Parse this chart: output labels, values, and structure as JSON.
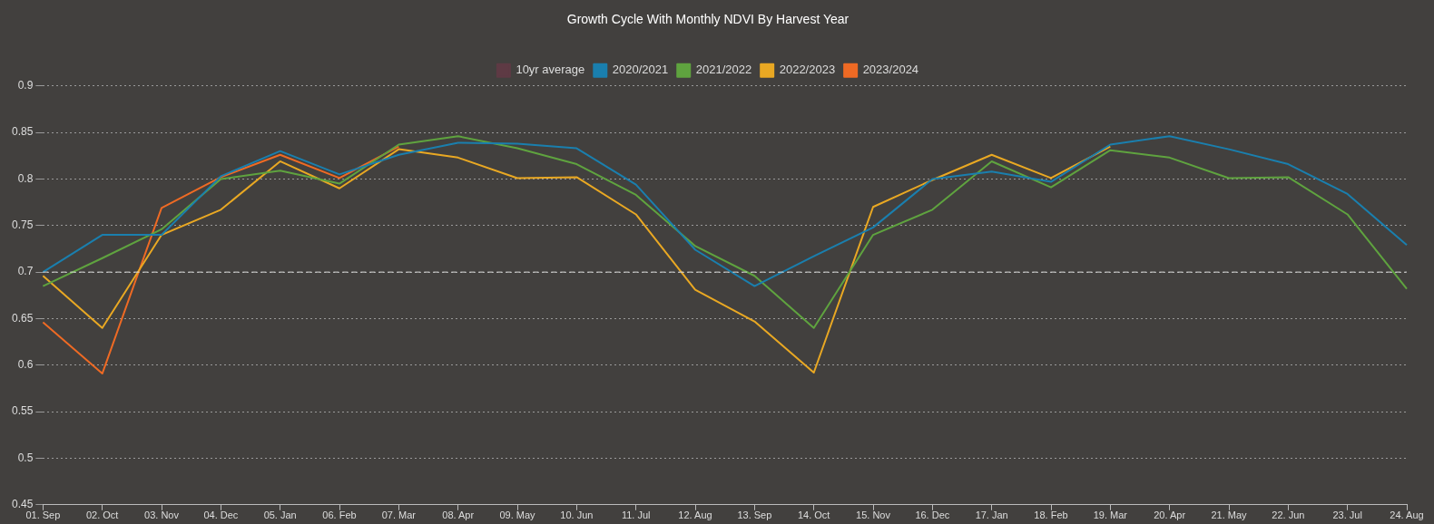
{
  "chart_data": {
    "type": "line",
    "title": "Growth Cycle With Monthly NDVI By Harvest Year",
    "categories": [
      "01. Sep",
      "02. Oct",
      "03. Nov",
      "04. Dec",
      "05. Jan",
      "06. Feb",
      "07. Mar",
      "08. Apr",
      "09. May",
      "10. Jun",
      "11. Jul",
      "12. Aug",
      "13. Sep",
      "14. Oct",
      "15. Nov",
      "16. Dec",
      "17. Jan",
      "18. Feb",
      "19. Mar",
      "20. Apr",
      "21. May",
      "22. Jun",
      "23. Jul",
      "24. Aug"
    ],
    "series": [
      {
        "name": "10yr average",
        "color": "#5e3a44",
        "values": [
          null,
          null,
          null,
          null,
          null,
          null,
          null,
          null,
          null,
          null,
          null,
          null,
          null,
          null,
          null,
          null,
          null,
          null,
          null,
          null,
          null,
          null,
          null,
          null
        ]
      },
      {
        "name": "2020/2021",
        "color": "#1a7fae",
        "values": [
          0.7,
          0.74,
          0.74,
          0.803,
          0.83,
          0.805,
          0.826,
          0.839,
          0.838,
          0.833,
          0.794,
          0.724,
          0.685,
          0.717,
          0.748,
          0.8,
          0.808,
          0.797,
          0.837,
          0.846,
          0.832,
          0.816,
          0.784,
          0.729
        ]
      },
      {
        "name": "2021/2022",
        "color": "#5fa33f",
        "values": [
          0.685,
          0.715,
          0.746,
          0.8,
          0.809,
          0.795,
          0.837,
          0.846,
          0.833,
          0.816,
          0.783,
          0.728,
          0.696,
          0.64,
          0.74,
          0.767,
          0.819,
          0.791,
          0.831,
          0.823,
          0.801,
          0.802,
          0.762,
          0.682
        ]
      },
      {
        "name": "2022/2023",
        "color": "#e9a823",
        "values": [
          0.696,
          0.64,
          0.74,
          0.767,
          0.819,
          0.79,
          0.832,
          0.823,
          0.801,
          0.802,
          0.762,
          0.681,
          0.647,
          0.592,
          0.77,
          0.799,
          0.826,
          0.801,
          0.835,
          null,
          null,
          null,
          null,
          null
        ]
      },
      {
        "name": "2023/2024",
        "color": "#ee6a24",
        "values": [
          0.646,
          0.591,
          0.769,
          0.802,
          0.826,
          0.801,
          0.835,
          null,
          null,
          null,
          null,
          null,
          null,
          null,
          null,
          null,
          null,
          null,
          null,
          null,
          null,
          null,
          null,
          null
        ]
      }
    ],
    "ylim": [
      0.45,
      0.9
    ],
    "yticks": [
      0.45,
      0.5,
      0.55,
      0.6,
      0.65,
      0.7,
      0.75,
      0.8,
      0.85,
      0.9
    ],
    "ref_lines": [
      {
        "axis": "y",
        "value": 0.7,
        "color": "#dddddd",
        "line_style": "dashed"
      }
    ],
    "grid": "y",
    "legend": "top",
    "marker": "none",
    "line_style": "solid"
  }
}
